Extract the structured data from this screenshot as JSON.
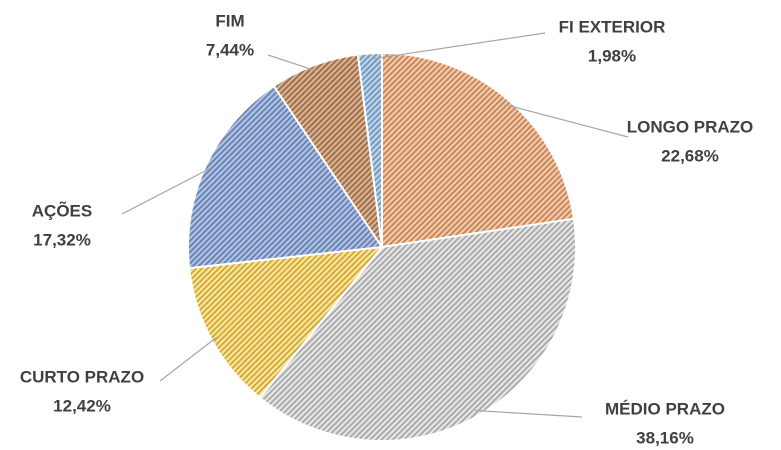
{
  "chart_data": {
    "type": "pie",
    "categories": [
      "LONGO PRAZO",
      "MÉDIO PRAZO",
      "CURTO PRAZO",
      "AÇÕES",
      "FIM",
      "FI EXTERIOR"
    ],
    "values": [
      22.68,
      38.16,
      12.42,
      17.32,
      7.44,
      1.98
    ],
    "value_labels": [
      "22,68%",
      "38,16%",
      "12,42%",
      "17,32%",
      "7,44%",
      "1,98%"
    ],
    "colors": [
      "#f4b183",
      "#d9d9d9",
      "#ffd966",
      "#8faadc",
      "#c9946a",
      "#9dc3e6"
    ]
  }
}
